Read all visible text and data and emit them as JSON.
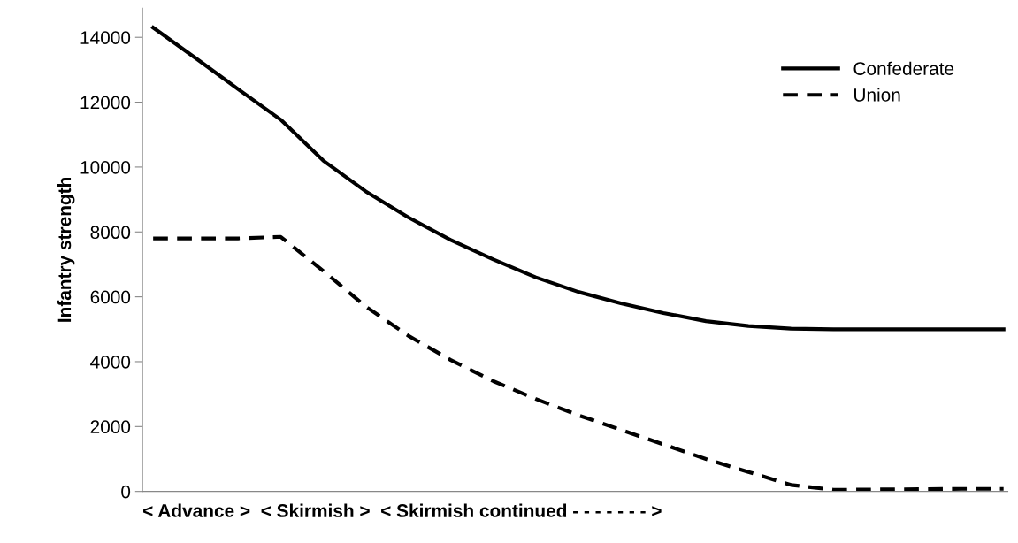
{
  "chart_data": {
    "type": "line",
    "ylabel": "Infantry strength",
    "xlabel": "< Advance >  < Skirmish >  < Skirmish continued - - - - - - - >",
    "categories": [
      null,
      null,
      null,
      null,
      null,
      null,
      null,
      null,
      null,
      null,
      null,
      null,
      null,
      null,
      null,
      null,
      null,
      null,
      null,
      null,
      null
    ],
    "series": [
      {
        "name": "Confederate",
        "color": "#000000",
        "line_style": "solid",
        "values": [
          14300,
          13360,
          12400,
          11460,
          10200,
          9250,
          8450,
          7750,
          7150,
          6600,
          6150,
          5800,
          5500,
          5250,
          5100,
          5020,
          5000,
          5000,
          5000,
          5000,
          5000
        ]
      },
      {
        "name": "Union",
        "color": "#000000",
        "line_style": "dashed",
        "values": [
          7800,
          7800,
          7800,
          7850,
          6800,
          5700,
          4800,
          4050,
          3400,
          2850,
          2350,
          1900,
          1450,
          1000,
          600,
          200,
          50,
          60,
          70,
          80,
          80
        ]
      }
    ],
    "ylim": [
      0,
      14900
    ],
    "yticks": [
      0,
      2000,
      4000,
      6000,
      8000,
      10000,
      12000,
      14000
    ],
    "grid": false,
    "legend": "top right",
    "tick_labels": "y",
    "marker": "none"
  }
}
